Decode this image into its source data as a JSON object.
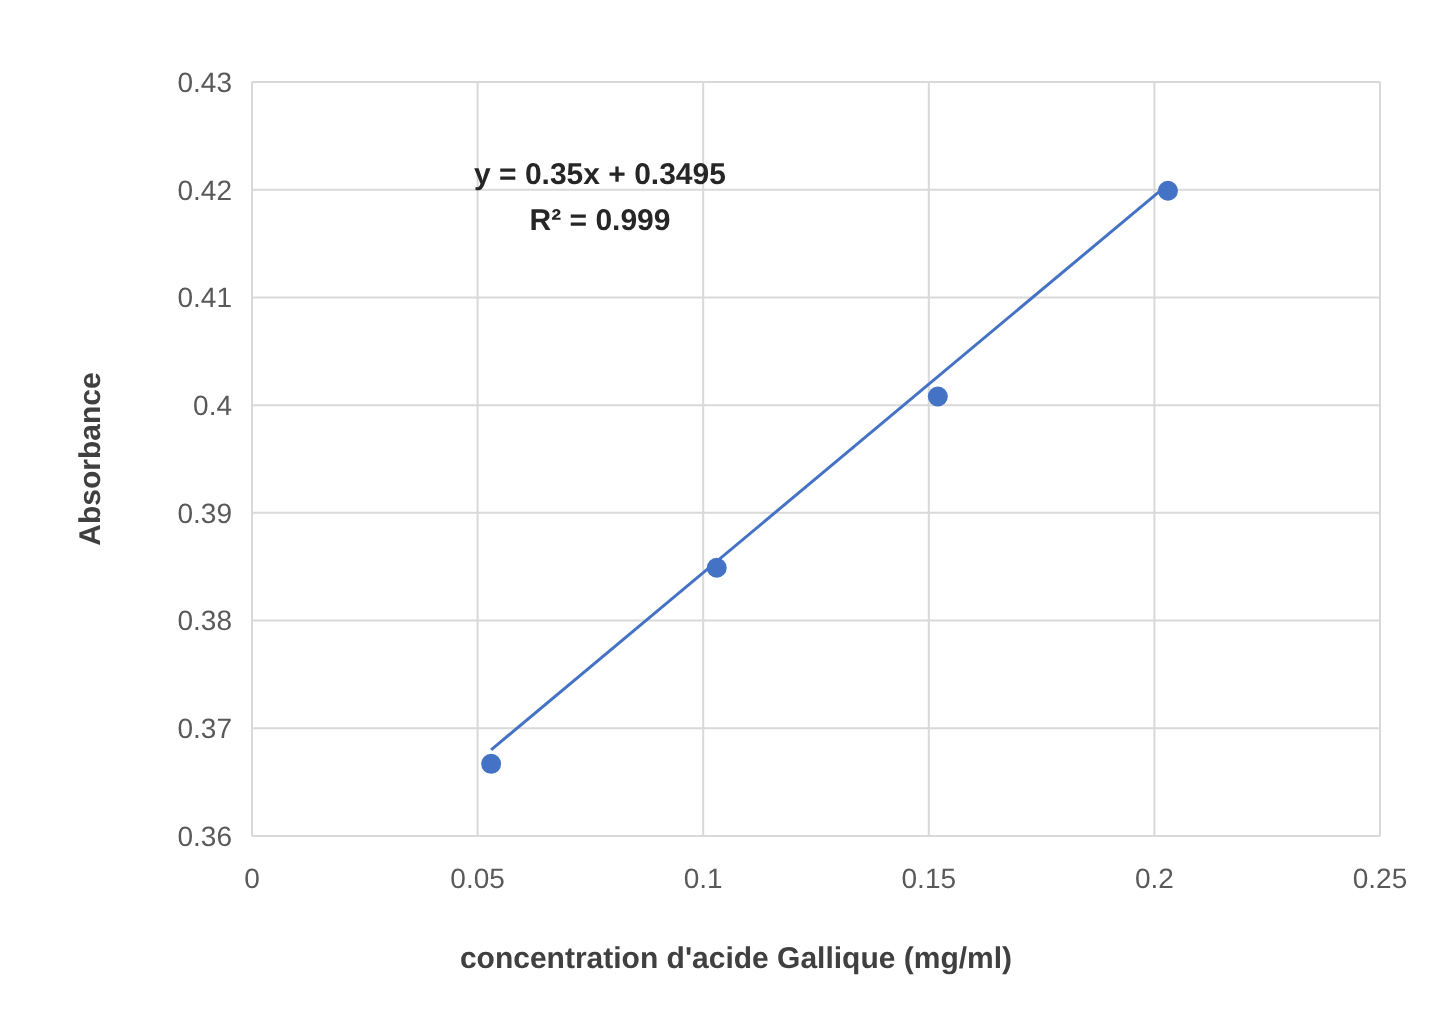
{
  "chart_data": {
    "type": "scatter",
    "xlabel": "concentration d'acide Gallique (mg/ml)",
    "ylabel": "Absorbance",
    "annotations": [
      "y = 0.35x + 0.3495",
      "R² = 0.999"
    ],
    "xlim": [
      0,
      0.25
    ],
    "xticks": [
      0,
      0.05,
      0.1,
      0.15,
      0.2,
      0.25
    ],
    "ylim": [
      0.36,
      0.43
    ],
    "yticks": [
      0.36,
      0.37,
      0.38,
      0.39,
      0.4,
      0.41,
      0.42,
      0.43
    ],
    "grid": true,
    "marker": "circle",
    "series": [
      {
        "color": "#4472c4",
        "x": [
          0.053,
          0.103,
          0.152,
          0.203
        ],
        "values": [
          0.3667,
          0.3849,
          0.4008,
          0.4199
        ]
      },
      {
        "type": "line",
        "color": "#4472c4",
        "marker": "none",
        "x": [
          0.053,
          0.203
        ],
        "values": [
          0.368,
          0.4205
        ]
      }
    ]
  }
}
